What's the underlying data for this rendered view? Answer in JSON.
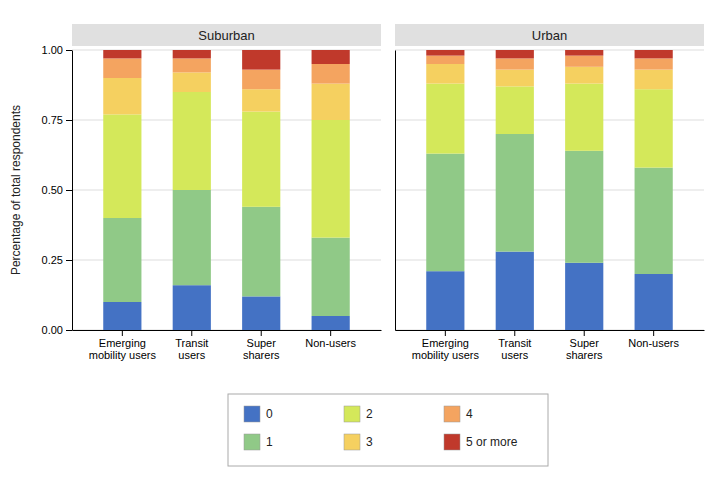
{
  "chart_data": [
    {
      "type": "bar",
      "stacked": true,
      "title": "Suburban",
      "categories": [
        "Emerging\nmobility users",
        "Transit\nusers",
        "Super\nsharers",
        "Non-users"
      ],
      "series": [
        {
          "name": "0",
          "color": "#4472C4",
          "values": [
            0.1,
            0.16,
            0.12,
            0.05
          ]
        },
        {
          "name": "1",
          "color": "#90C987",
          "values": [
            0.3,
            0.34,
            0.32,
            0.28
          ]
        },
        {
          "name": "2",
          "color": "#D4E85A",
          "values": [
            0.37,
            0.35,
            0.34,
            0.42
          ]
        },
        {
          "name": "3",
          "color": "#F5D060",
          "values": [
            0.13,
            0.07,
            0.08,
            0.13
          ]
        },
        {
          "name": "4",
          "color": "#F4A460",
          "values": [
            0.07,
            0.05,
            0.07,
            0.07
          ]
        },
        {
          "name": "5 or more",
          "color": "#C0392B",
          "values": [
            0.03,
            0.03,
            0.07,
            0.05
          ]
        }
      ],
      "ylabel": "Percentage of total respondents",
      "ylim": [
        0,
        1.0
      ],
      "yticks": [
        {
          "value": 0,
          "label": "0.00"
        },
        0.25,
        {
          "value": 0.5,
          "label": "0.50"
        },
        0.75,
        {
          "value": 1.0,
          "label": "1.00"
        }
      ],
      "grid": true,
      "legend": "bottom"
    },
    {
      "type": "bar",
      "stacked": true,
      "title": "Urban",
      "categories": [
        "Emerging\nmobility users",
        "Transit\nusers",
        "Super\nsharers",
        "Non-users"
      ],
      "series": [
        {
          "color": "#4472C4",
          "values": [
            0.21,
            0.28,
            0.24,
            0.2
          ]
        },
        {
          "color": "#90C987",
          "values": [
            0.42,
            0.42,
            0.4,
            0.38
          ]
        },
        {
          "color": "#D4E85A",
          "values": [
            0.25,
            0.17,
            0.24,
            0.28
          ]
        },
        {
          "color": "#F5D060",
          "values": [
            0.07,
            0.06,
            0.06,
            0.07
          ]
        },
        {
          "color": "#F4A460",
          "values": [
            0.03,
            0.04,
            0.04,
            0.04
          ]
        },
        {
          "color": "#C0392B",
          "values": [
            0.02,
            0.03,
            0.02,
            0.03
          ]
        }
      ],
      "ylim": [
        0,
        1.0
      ],
      "yticks": [
        0,
        0.25,
        0.5,
        0.75,
        1.0
      ],
      "grid": true,
      "tick_labels": "x"
    }
  ]
}
